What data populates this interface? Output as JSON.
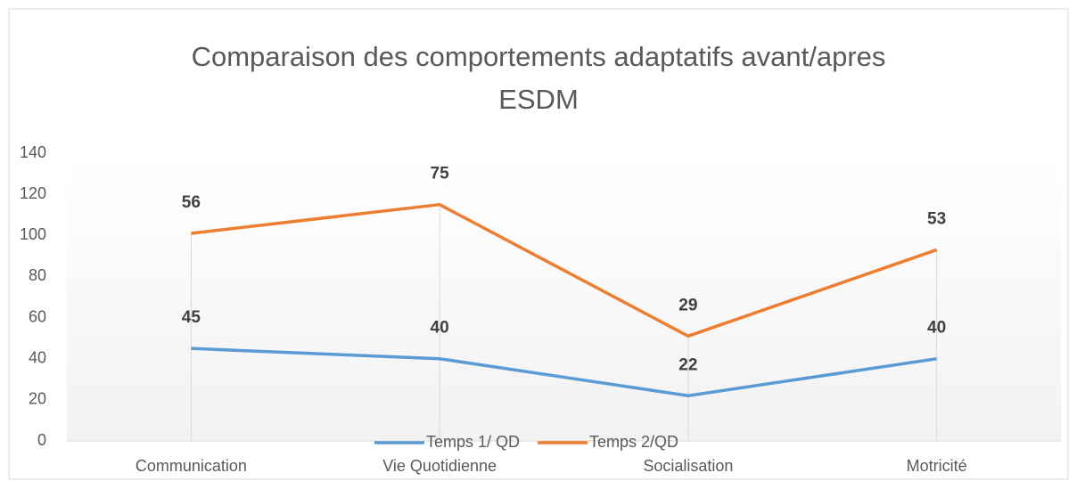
{
  "chart_data": {
    "type": "line",
    "stacked": true,
    "title": "Comparaison des comportements adaptatifs avant/apres ESDM",
    "categories": [
      "Communication",
      "Vie Quotidienne",
      "Socialisation",
      "Motricité"
    ],
    "series": [
      {
        "name": "Temps 1/ QD",
        "color": "#5b9bd5",
        "values": [
          45,
          40,
          22,
          40
        ]
      },
      {
        "name": "Temps 2/QD",
        "color": "#ed7d31",
        "values": [
          56,
          75,
          29,
          53
        ]
      }
    ],
    "ylim": [
      0,
      140
    ],
    "yticks": [
      0,
      20,
      40,
      60,
      80,
      100,
      120,
      140
    ],
    "legend": "bottom"
  }
}
